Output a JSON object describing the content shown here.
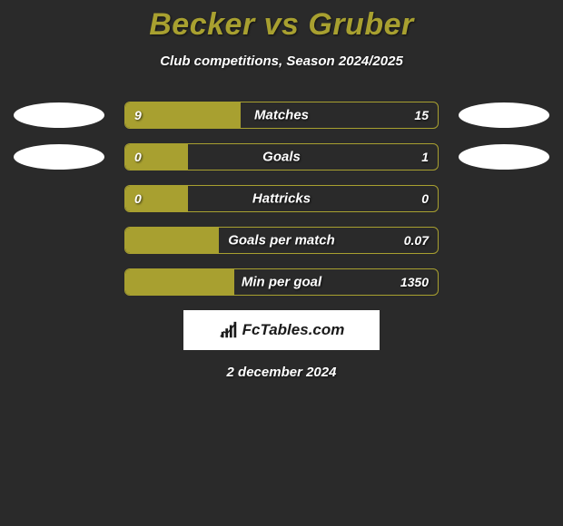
{
  "title": "Becker vs Gruber",
  "subtitle": "Club competitions, Season 2024/2025",
  "logo_text": "FcTables.com",
  "date": "2 december 2024",
  "colors": {
    "background": "#2a2a2a",
    "accent": "#a8a030",
    "text": "#ffffff",
    "oval": "#ffffff",
    "logo_bg": "#ffffff",
    "logo_text": "#1a1a1a"
  },
  "rows": [
    {
      "label": "Matches",
      "left": "9",
      "right": "15",
      "fill_pct": 37,
      "ovals": true
    },
    {
      "label": "Goals",
      "left": "0",
      "right": "1",
      "fill_pct": 20,
      "ovals": true
    },
    {
      "label": "Hattricks",
      "left": "0",
      "right": "0",
      "fill_pct": 20,
      "ovals": false
    },
    {
      "label": "Goals per match",
      "left": "",
      "right": "0.07",
      "fill_pct": 30,
      "ovals": false
    },
    {
      "label": "Min per goal",
      "left": "",
      "right": "1350",
      "fill_pct": 35,
      "ovals": false
    }
  ]
}
